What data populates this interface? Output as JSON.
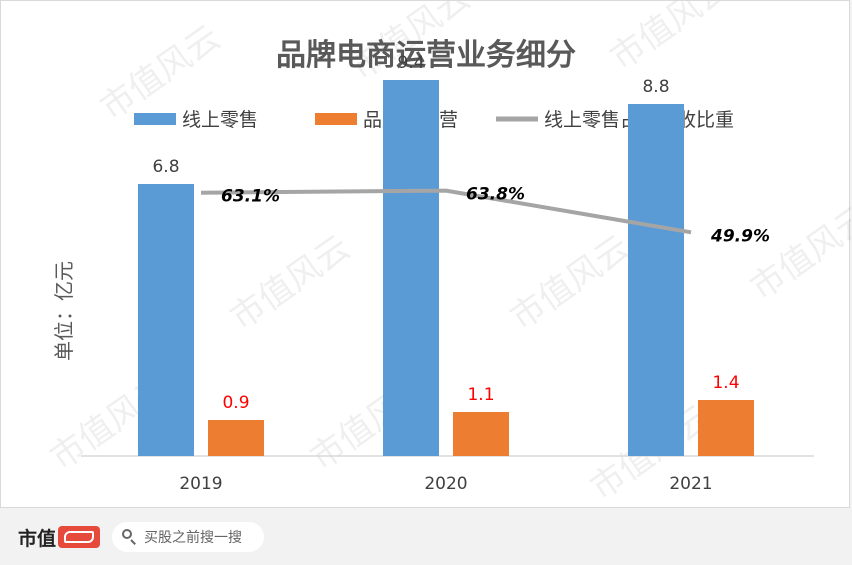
{
  "chart_data": {
    "type": "bar",
    "title": "品牌电商运营业务细分",
    "ylabel": "单位：亿元",
    "categories": [
      "2019",
      "2020",
      "2021"
    ],
    "series": [
      {
        "name": "线上零售",
        "kind": "bar",
        "color": "#5b9bd5",
        "values": [
          6.8,
          9.4,
          8.8
        ],
        "labels": [
          "6.8",
          "9.4",
          "8.8"
        ]
      },
      {
        "name": "品牌代运营",
        "kind": "bar",
        "color": "#ed7d31",
        "values": [
          0.9,
          1.1,
          1.4
        ],
        "labels": [
          "0.9",
          "1.1",
          "1.4"
        ]
      },
      {
        "name": "线上零售占总营收比重",
        "kind": "line",
        "color": "#a5a5a5",
        "values": [
          63.1,
          63.8,
          49.9
        ],
        "labels": [
          "63.1%",
          "63.8%",
          "49.9%"
        ]
      }
    ],
    "ylim": [
      0,
      10
    ],
    "legend": "top",
    "grid": false
  },
  "watermark": "市值风云",
  "footer": {
    "brand": "市值",
    "search_placeholder": "买股之前搜一搜"
  }
}
